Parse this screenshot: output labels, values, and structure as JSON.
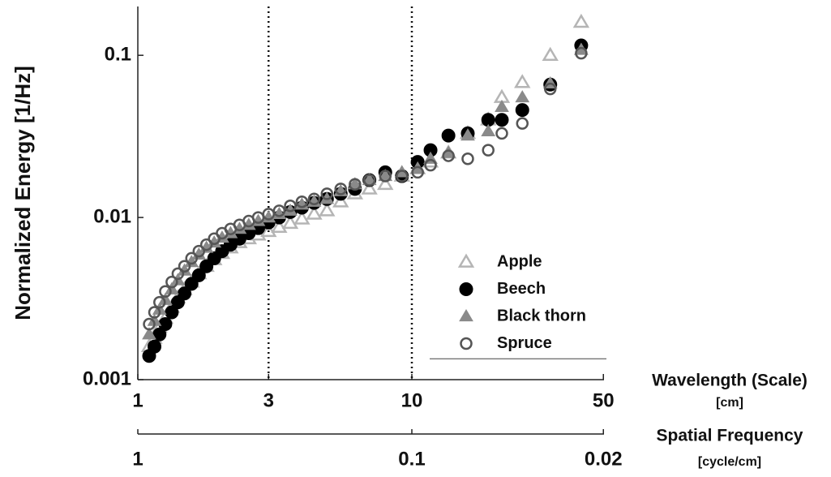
{
  "chart_data": {
    "type": "scatter",
    "ylabel": "Normalized Energy [1/Hz]",
    "xlabel": "Wavelength (Scale)",
    "xlabel_unit": "[cm]",
    "x2label": "Spatial Frequency",
    "x2label_unit": "[cycle/cm]",
    "xscale": "log",
    "yscale": "log",
    "xlim": [
      1,
      52
    ],
    "ylim": [
      0.001,
      0.2
    ],
    "xticks": [
      1,
      3,
      10,
      50
    ],
    "yticks": [
      0.001,
      0.01,
      0.1
    ],
    "x2lim": [
      1,
      0.01923
    ],
    "x2ticks": [
      1,
      0.1,
      0.02
    ],
    "reference_lines_x": [
      3,
      10
    ],
    "legend": "lower right",
    "series": [
      {
        "name": "Apple",
        "color": "#b5b5b5",
        "marker": "triangle",
        "filled": false,
        "x": [
          1.1,
          1.15,
          1.2,
          1.26,
          1.33,
          1.4,
          1.48,
          1.57,
          1.67,
          1.78,
          1.9,
          2.03,
          2.18,
          2.35,
          2.54,
          2.75,
          3.0,
          3.28,
          3.6,
          3.97,
          4.4,
          4.9,
          5.5,
          6.2,
          7.0,
          8.0,
          9.2,
          10.5,
          11.7,
          13.6,
          16,
          19,
          21.3,
          25.3,
          32,
          41.5
        ],
        "values": [
          0.0016,
          0.0018,
          0.0021,
          0.0024,
          0.0028,
          0.0032,
          0.0036,
          0.004,
          0.0045,
          0.005,
          0.0055,
          0.006,
          0.0065,
          0.007,
          0.0074,
          0.0078,
          0.0082,
          0.0087,
          0.0092,
          0.0098,
          0.0105,
          0.011,
          0.0125,
          0.014,
          0.015,
          0.016,
          0.018,
          0.02,
          0.022,
          0.025,
          0.033,
          0.04,
          0.055,
          0.068,
          0.1,
          0.16
        ]
      },
      {
        "name": "Beech",
        "color": "#000000",
        "marker": "circle",
        "filled": true,
        "x": [
          1.1,
          1.15,
          1.2,
          1.26,
          1.33,
          1.4,
          1.48,
          1.57,
          1.67,
          1.78,
          1.9,
          2.03,
          2.18,
          2.35,
          2.54,
          2.75,
          3.0,
          3.28,
          3.6,
          3.97,
          4.4,
          4.9,
          5.5,
          6.2,
          7.0,
          8.0,
          9.2,
          10.5,
          11.7,
          13.6,
          16,
          19,
          21.3,
          25.3,
          32,
          41.5
        ],
        "values": [
          0.0014,
          0.0016,
          0.0019,
          0.0022,
          0.0026,
          0.003,
          0.0034,
          0.0039,
          0.0044,
          0.005,
          0.0056,
          0.0062,
          0.0068,
          0.0074,
          0.008,
          0.0086,
          0.0093,
          0.01,
          0.0108,
          0.0115,
          0.0123,
          0.013,
          0.014,
          0.015,
          0.017,
          0.019,
          0.018,
          0.022,
          0.026,
          0.032,
          0.033,
          0.04,
          0.04,
          0.046,
          0.066,
          0.115
        ]
      },
      {
        "name": "Black thorn",
        "color": "#8a8a8a",
        "marker": "triangle",
        "filled": true,
        "x": [
          1.1,
          1.15,
          1.2,
          1.26,
          1.33,
          1.4,
          1.48,
          1.57,
          1.67,
          1.78,
          1.9,
          2.03,
          2.18,
          2.35,
          2.54,
          2.75,
          3.0,
          3.28,
          3.6,
          3.97,
          4.4,
          4.9,
          5.5,
          6.2,
          7.0,
          8.0,
          9.2,
          10.5,
          11.7,
          13.6,
          16,
          19,
          21.3,
          25.3,
          32,
          41.5
        ],
        "values": [
          0.0019,
          0.0023,
          0.0027,
          0.0031,
          0.0036,
          0.0041,
          0.0047,
          0.0053,
          0.0059,
          0.0065,
          0.007,
          0.0075,
          0.008,
          0.0085,
          0.009,
          0.0095,
          0.01,
          0.0105,
          0.011,
          0.012,
          0.0125,
          0.013,
          0.0145,
          0.016,
          0.017,
          0.018,
          0.019,
          0.02,
          0.023,
          0.025,
          0.032,
          0.034,
          0.048,
          0.055,
          0.067,
          0.108
        ]
      },
      {
        "name": "Spruce",
        "color": "#555555",
        "marker": "circle",
        "filled": false,
        "x": [
          1.1,
          1.15,
          1.2,
          1.26,
          1.33,
          1.4,
          1.48,
          1.57,
          1.67,
          1.78,
          1.9,
          2.03,
          2.18,
          2.35,
          2.54,
          2.75,
          3.0,
          3.28,
          3.6,
          3.97,
          4.4,
          4.9,
          5.5,
          6.2,
          7.0,
          8.0,
          9.2,
          10.5,
          11.7,
          13.6,
          16,
          19,
          21.3,
          25.3,
          32,
          41.5
        ],
        "values": [
          0.0022,
          0.0026,
          0.003,
          0.0035,
          0.004,
          0.0045,
          0.005,
          0.0056,
          0.0062,
          0.0068,
          0.0074,
          0.008,
          0.0085,
          0.009,
          0.0095,
          0.01,
          0.0105,
          0.011,
          0.0118,
          0.0125,
          0.013,
          0.014,
          0.015,
          0.016,
          0.017,
          0.018,
          0.018,
          0.019,
          0.021,
          0.024,
          0.023,
          0.026,
          0.033,
          0.038,
          0.062,
          0.103
        ]
      }
    ]
  }
}
